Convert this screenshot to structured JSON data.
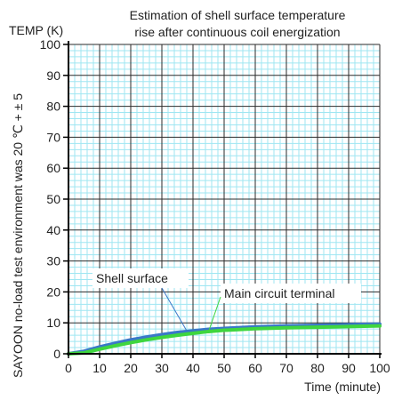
{
  "chart_data": {
    "type": "line",
    "title_lines": [
      "Estimation of shell surface temperature",
      "rise after continuous coil energization"
    ],
    "ylabel_top": "TEMP (K)",
    "side_note": "SAYOON no-load test environment was 20  ℃ + ± 5",
    "xlabel": "Time (minute)",
    "xlim": [
      0,
      100
    ],
    "ylim": [
      0,
      100
    ],
    "x_ticks": [
      "0",
      "10",
      "20",
      "30",
      "40",
      "50",
      "60",
      "70",
      "80",
      "90",
      "100"
    ],
    "y_ticks": [
      "0",
      "10",
      "20",
      "30",
      "40",
      "50",
      "60",
      "70",
      "80",
      "90",
      "100"
    ],
    "minor_grid_step": 2,
    "grid": true,
    "series": [
      {
        "name": "Shell surface",
        "color": "#3a78c8",
        "x": [
          0,
          5,
          10,
          15,
          20,
          25,
          30,
          35,
          40,
          45,
          50,
          60,
          70,
          80,
          90,
          100
        ],
        "y": [
          0,
          0.8,
          2.2,
          3.4,
          4.5,
          5.4,
          6.2,
          6.9,
          7.4,
          7.9,
          8.2,
          8.7,
          9.0,
          9.2,
          9.4,
          9.6
        ]
      },
      {
        "name": "Main circuit terminal",
        "color": "#3fd63f",
        "x": [
          0,
          5,
          10,
          15,
          20,
          25,
          30,
          35,
          40,
          45,
          50,
          60,
          70,
          80,
          90,
          100
        ],
        "y": [
          0,
          0.3,
          1.5,
          2.6,
          3.6,
          4.5,
          5.3,
          6.0,
          6.6,
          7.2,
          7.6,
          8.1,
          8.4,
          8.6,
          8.8,
          9.0
        ]
      }
    ]
  }
}
